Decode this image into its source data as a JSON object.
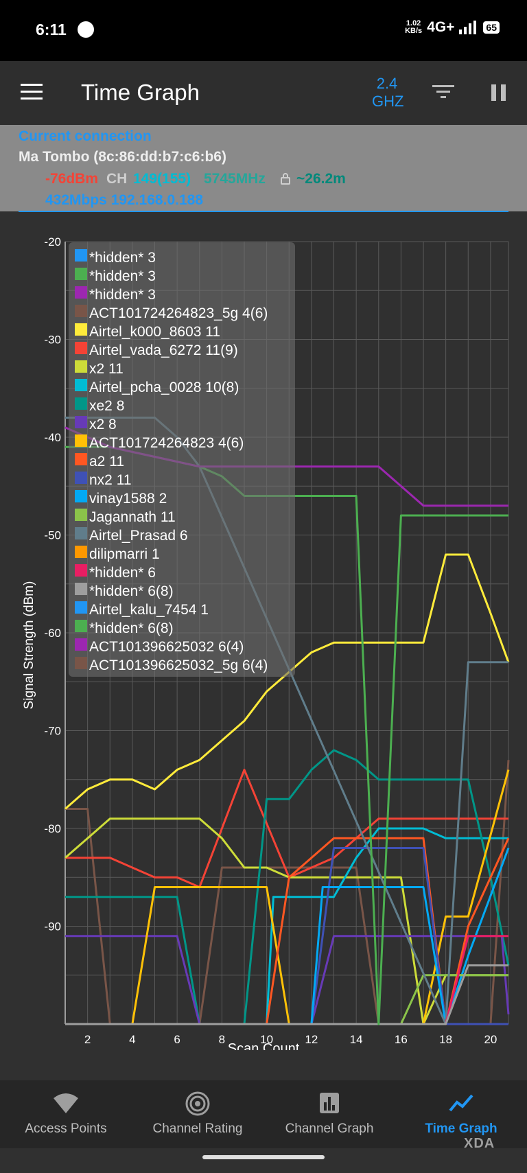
{
  "status_bar": {
    "time": "6:11",
    "net_speed_top": "1.02",
    "net_speed_bottom": "KB/s",
    "network": "4G+",
    "battery": "65"
  },
  "app_bar": {
    "title": "Time Graph",
    "band_line1": "2.4",
    "band_line2": "GHZ",
    "menu_icon": "hamburger-menu-icon",
    "filter_icon": "filter-icon",
    "pause_icon": "pause-icon"
  },
  "connection": {
    "header": "Current connection",
    "ssid": "Ma Tombo (8c:86:dd:b7:c6:b6)",
    "signal": "-76dBm",
    "ch_label": "CH",
    "channel": "149(155)",
    "frequency": "5745MHz",
    "distance": "~26.2m",
    "speed_ip": "432Mbps 192.168.0.188",
    "colors": {
      "header": "#2196f3",
      "signal": "#f44336",
      "channel": "#00bcd4",
      "frequency": "#26a69a",
      "distance": "#00897b",
      "speed": "#2196f3"
    }
  },
  "chart_data": {
    "type": "line",
    "ylabel": "Signal Strength (dBm)",
    "xlabel": "Scan Count",
    "ylim": [
      -100,
      -20
    ],
    "xlim": [
      1,
      20.8
    ],
    "yticks": [
      -20,
      -30,
      -40,
      -50,
      -60,
      -70,
      -80,
      -90
    ],
    "xticks": [
      2,
      4,
      6,
      8,
      10,
      12,
      14,
      16,
      18,
      20
    ],
    "grid": true,
    "legend_position": "top-left",
    "series": [
      {
        "name": "*hidden* 3",
        "color": "#2196f3",
        "points": []
      },
      {
        "name": "*hidden* 3",
        "color": "#4caf50",
        "points": []
      },
      {
        "name": "*hidden* 3",
        "color": "#9c27b0",
        "points": []
      },
      {
        "name": "ACT101724264823_5g 4(6)",
        "color": "#795548",
        "points": [
          [
            1,
            -78
          ],
          [
            2,
            -78
          ],
          [
            3,
            -100
          ],
          [
            7,
            -100
          ],
          [
            8,
            -84
          ],
          [
            9,
            -84
          ],
          [
            14,
            -84
          ],
          [
            15,
            -100
          ],
          [
            20,
            -100
          ],
          [
            20.8,
            -73
          ]
        ]
      },
      {
        "name": "Airtel_k000_8603 11",
        "color": "#ffeb3b",
        "points": [
          [
            1,
            -78
          ],
          [
            2,
            -76
          ],
          [
            3,
            -75
          ],
          [
            4,
            -75
          ],
          [
            5,
            -76
          ],
          [
            6,
            -74
          ],
          [
            7,
            -73
          ],
          [
            8,
            -71
          ],
          [
            9,
            -69
          ],
          [
            10,
            -66
          ],
          [
            11,
            -64
          ],
          [
            12,
            -62
          ],
          [
            13,
            -61
          ],
          [
            17,
            -61
          ],
          [
            18,
            -52
          ],
          [
            19,
            -52
          ],
          [
            20,
            -58
          ],
          [
            20.8,
            -63
          ]
        ]
      },
      {
        "name": "Airtel_vada_6272 11(9)",
        "color": "#f44336",
        "points": [
          [
            1,
            -83
          ],
          [
            3,
            -83
          ],
          [
            5,
            -85
          ],
          [
            6,
            -85
          ],
          [
            7,
            -86
          ],
          [
            9,
            -74
          ],
          [
            11,
            -85
          ],
          [
            13,
            -83
          ],
          [
            14,
            -81
          ],
          [
            15,
            -79
          ],
          [
            20.8,
            -79
          ]
        ]
      },
      {
        "name": "x2 11",
        "color": "#cddc39",
        "points": [
          [
            1,
            -83
          ],
          [
            3,
            -79
          ],
          [
            7,
            -79
          ],
          [
            8,
            -81
          ],
          [
            9,
            -84
          ],
          [
            10,
            -84
          ],
          [
            11,
            -85
          ],
          [
            16,
            -85
          ],
          [
            17,
            -100
          ],
          [
            18,
            -95
          ],
          [
            20.8,
            -95
          ]
        ]
      },
      {
        "name": "Airtel_pcha_0028 10(8)",
        "color": "#00bcd4",
        "points": [
          [
            1,
            -100
          ],
          [
            10,
            -100
          ],
          [
            10.3,
            -87
          ],
          [
            13,
            -87
          ],
          [
            14,
            -83
          ],
          [
            15,
            -80
          ],
          [
            17,
            -80
          ],
          [
            18,
            -81
          ],
          [
            20.8,
            -81
          ]
        ]
      },
      {
        "name": "xe2 8",
        "color": "#009688",
        "points": [
          [
            1,
            -87
          ],
          [
            6,
            -87
          ],
          [
            7,
            -100
          ],
          [
            9,
            -100
          ],
          [
            10,
            -77
          ],
          [
            11,
            -77
          ],
          [
            12,
            -74
          ],
          [
            13,
            -72
          ],
          [
            14,
            -73
          ],
          [
            15,
            -75
          ],
          [
            19,
            -75
          ],
          [
            20,
            -85
          ],
          [
            20.8,
            -94
          ]
        ]
      },
      {
        "name": "x2 8",
        "color": "#673ab7",
        "points": [
          [
            1,
            -91
          ],
          [
            6,
            -91
          ],
          [
            7,
            -100
          ],
          [
            12,
            -100
          ],
          [
            13,
            -91
          ],
          [
            14,
            -91
          ],
          [
            20.5,
            -91
          ],
          [
            20.8,
            -99
          ]
        ]
      },
      {
        "name": "ACT101724264823 4(6)",
        "color": "#ffc107",
        "points": [
          [
            1,
            -100
          ],
          [
            4,
            -100
          ],
          [
            5,
            -86
          ],
          [
            10,
            -86
          ],
          [
            11,
            -100
          ],
          [
            17,
            -100
          ],
          [
            18,
            -89
          ],
          [
            19,
            -89
          ],
          [
            20.8,
            -74
          ]
        ]
      },
      {
        "name": "a2 11",
        "color": "#ff5722",
        "points": [
          [
            1,
            -100
          ],
          [
            10,
            -100
          ],
          [
            11,
            -85
          ],
          [
            13,
            -81
          ],
          [
            17,
            -81
          ],
          [
            18,
            -100
          ],
          [
            19,
            -90
          ],
          [
            20.8,
            -81
          ]
        ]
      },
      {
        "name": "nx2 11",
        "color": "#3f51b5",
        "points": [
          [
            1,
            -100
          ],
          [
            12,
            -100
          ],
          [
            13,
            -82
          ],
          [
            17,
            -82
          ],
          [
            18,
            -100
          ],
          [
            20.8,
            -100
          ]
        ]
      },
      {
        "name": "vinay1588 2",
        "color": "#03a9f4",
        "points": [
          [
            1,
            -100
          ],
          [
            12,
            -100
          ],
          [
            12.5,
            -86
          ],
          [
            17,
            -86
          ],
          [
            18,
            -100
          ],
          [
            19,
            -93
          ],
          [
            20.8,
            -82
          ]
        ]
      },
      {
        "name": "Jagannath 11",
        "color": "#8bc34a",
        "points": [
          [
            1,
            -100
          ],
          [
            16,
            -100
          ],
          [
            17,
            -95
          ],
          [
            20.8,
            -95
          ]
        ]
      },
      {
        "name": "Airtel_Prasad 6",
        "color": "#607d8b",
        "points": [
          [
            1,
            -38
          ],
          [
            5,
            -38
          ],
          [
            6,
            -40
          ],
          [
            7,
            -43
          ],
          [
            18,
            -100
          ],
          [
            19,
            -63
          ],
          [
            20.8,
            -63
          ]
        ]
      },
      {
        "name": "dilipmarri 1",
        "color": "#ff9800",
        "points": []
      },
      {
        "name": "*hidden* 6",
        "color": "#e91e63",
        "points": [
          [
            1,
            -100
          ],
          [
            18,
            -100
          ],
          [
            19,
            -91
          ],
          [
            20.8,
            -91
          ]
        ]
      },
      {
        "name": "*hidden* 6(8)",
        "color": "#9e9e9e",
        "points": [
          [
            1,
            -100
          ],
          [
            18,
            -100
          ],
          [
            19,
            -94
          ],
          [
            20.8,
            -94
          ]
        ]
      },
      {
        "name": "Airtel_kalu_7454 1",
        "color": "#2196f3",
        "points": []
      },
      {
        "name": "*hidden* 6(8)",
        "color": "#4caf50",
        "points": [
          [
            1,
            -41
          ],
          [
            3,
            -41
          ],
          [
            7,
            -43
          ],
          [
            8,
            -44
          ],
          [
            9,
            -46
          ],
          [
            14,
            -46
          ],
          [
            15,
            -100
          ],
          [
            16,
            -48
          ],
          [
            20.8,
            -48
          ]
        ]
      },
      {
        "name": "ACT101396625032 6(4)",
        "color": "#9c27b0",
        "points": [
          [
            1,
            -39
          ],
          [
            3,
            -41
          ],
          [
            5,
            -42
          ],
          [
            7,
            -43
          ],
          [
            15,
            -43
          ],
          [
            17,
            -47
          ],
          [
            20.8,
            -47
          ]
        ]
      },
      {
        "name": "ACT101396625032_5g 6(4)",
        "color": "#795548",
        "points": []
      }
    ]
  },
  "bottom_nav": [
    {
      "label": "Access Points",
      "icon": "wifi-icon",
      "active": false
    },
    {
      "label": "Channel Rating",
      "icon": "signal-rating-icon",
      "active": false
    },
    {
      "label": "Channel Graph",
      "icon": "bar-chart-icon",
      "active": false
    },
    {
      "label": "Time Graph",
      "icon": "line-chart-icon",
      "active": true
    }
  ],
  "watermark": "XDA"
}
